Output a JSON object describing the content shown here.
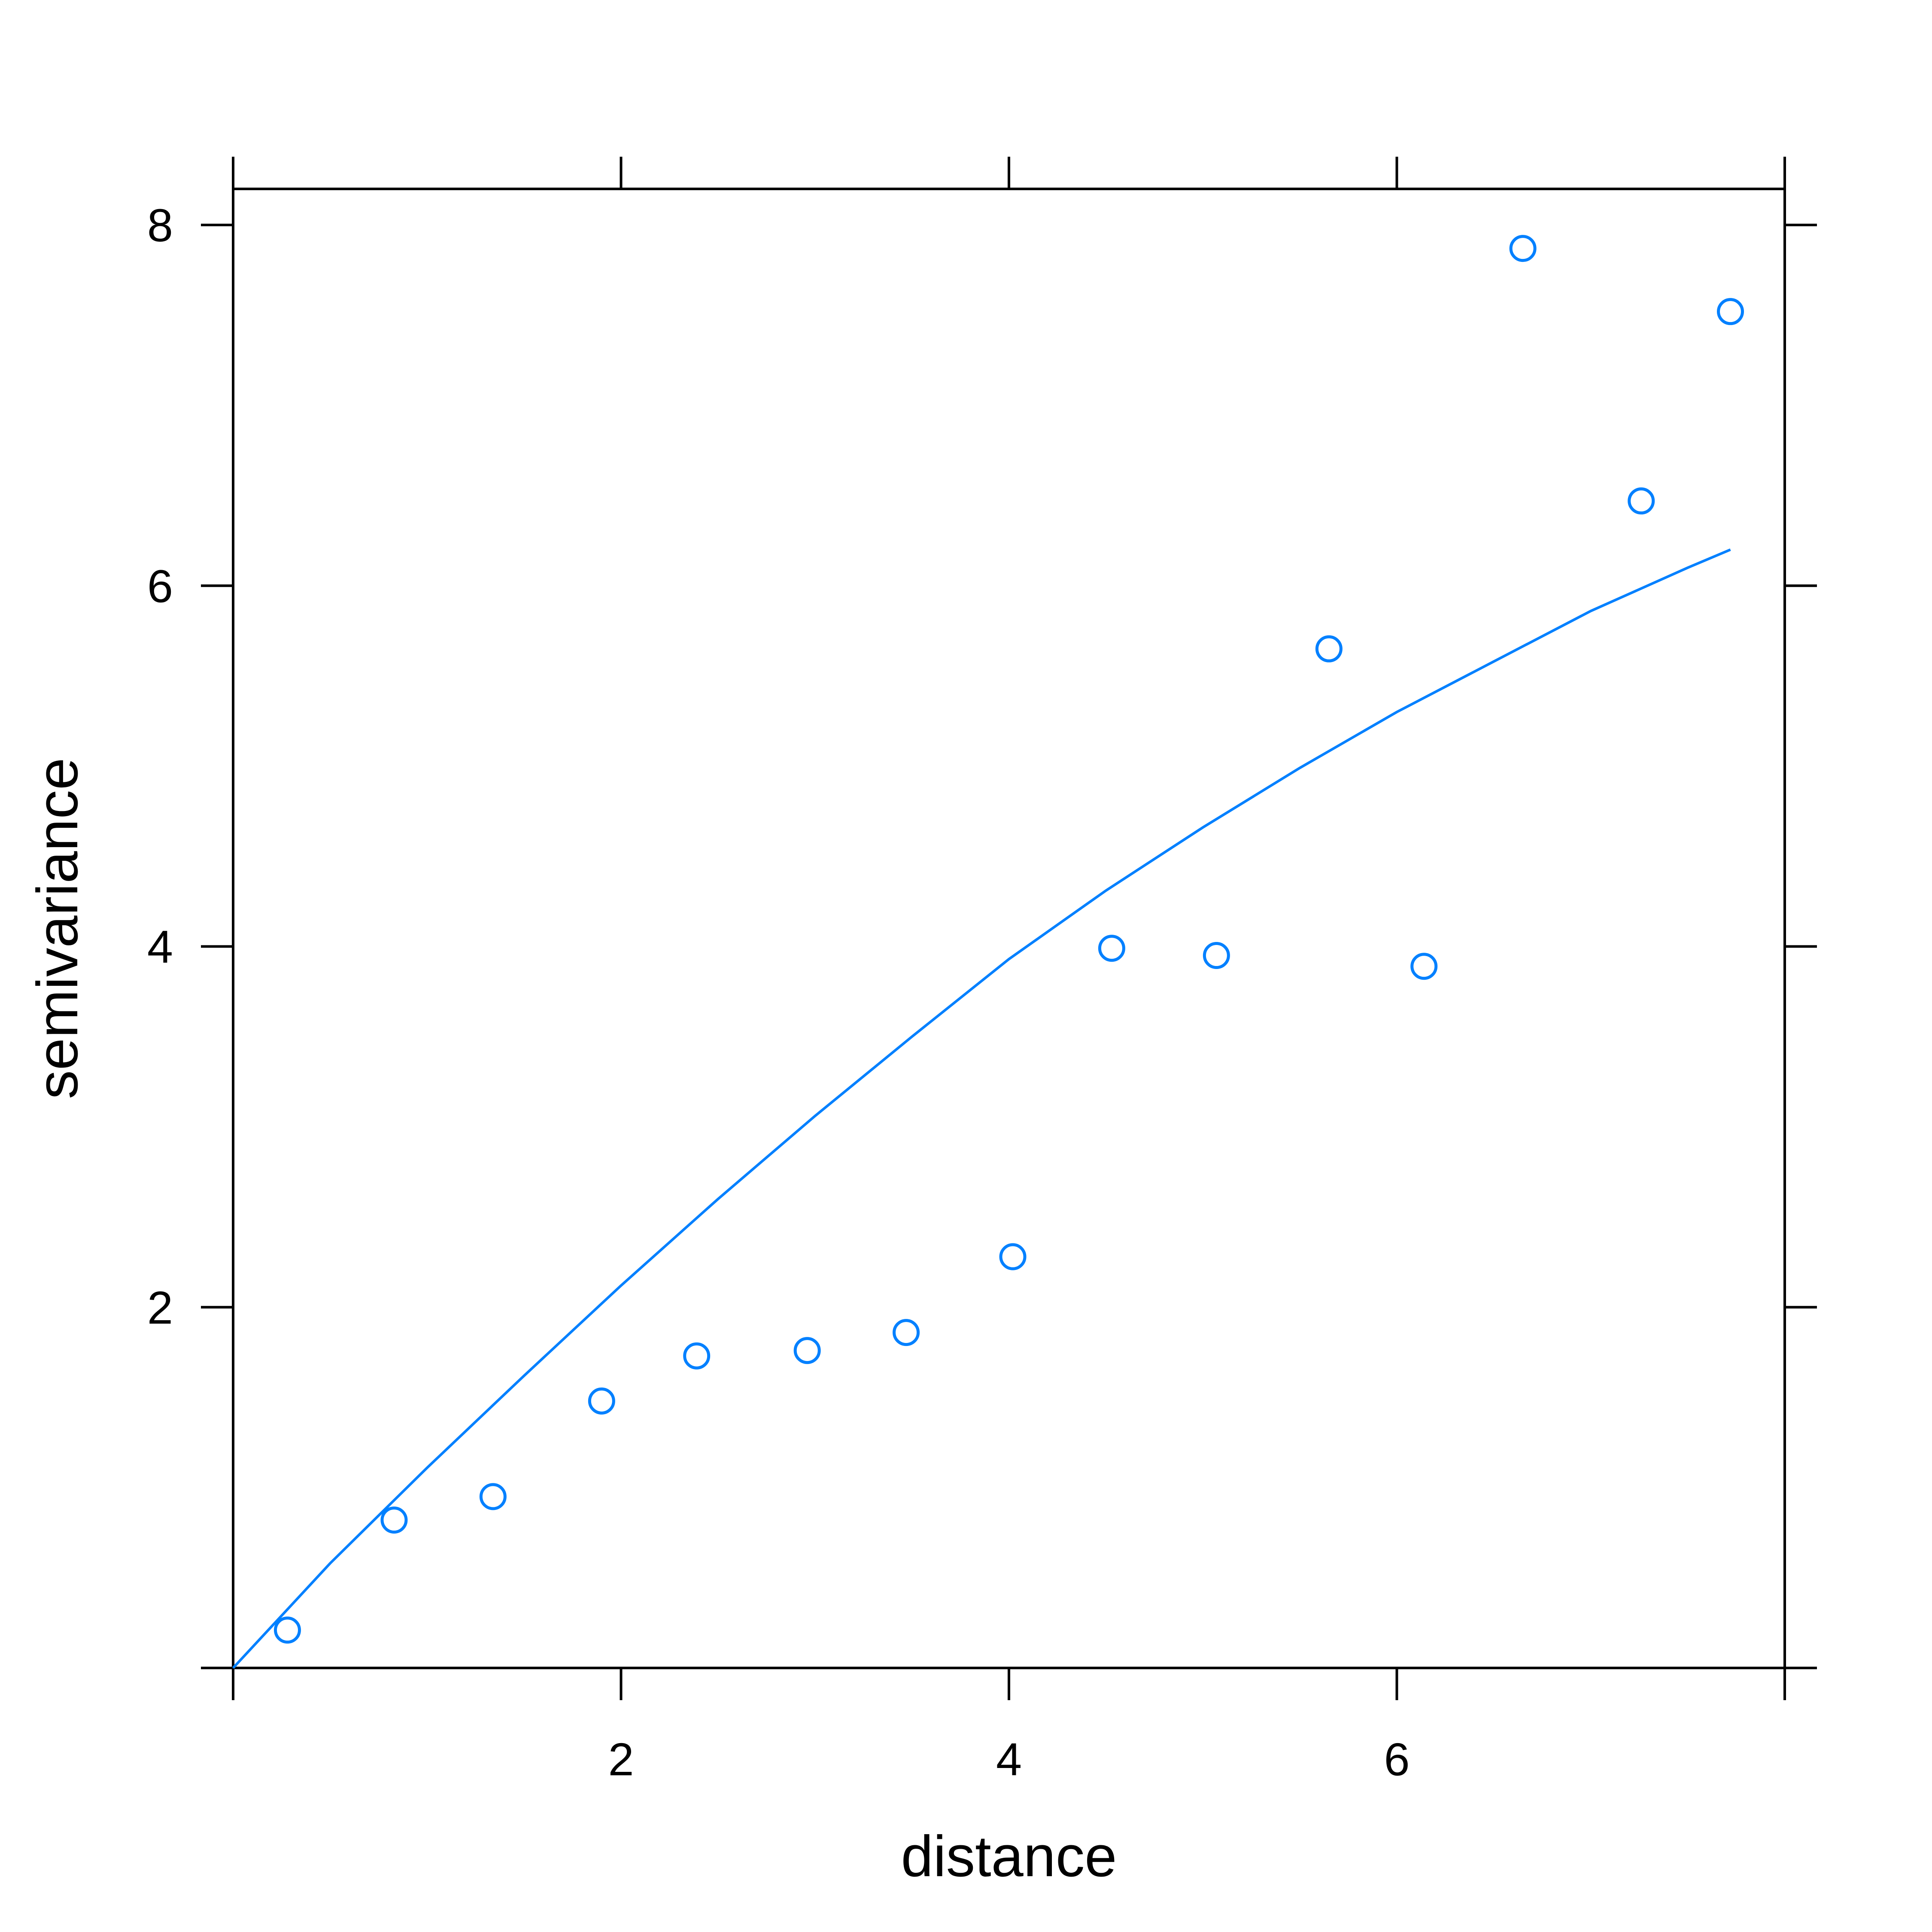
{
  "chart_data": {
    "type": "scatter",
    "xlabel": "distance",
    "ylabel": "semivariance",
    "xlim": [
      0,
      8
    ],
    "ylim": [
      0,
      8.2
    ],
    "x_ticks": [
      0,
      2,
      4,
      6,
      8
    ],
    "x_tick_labels": [
      "",
      "2",
      "4",
      "6",
      ""
    ],
    "y_ticks": [
      0,
      2,
      4,
      6,
      8
    ],
    "y_tick_labels": [
      "",
      "2",
      "4",
      "6",
      "8"
    ],
    "grid": false,
    "color": "#0080ff",
    "series": [
      {
        "kind": "points",
        "marker": "open-circle",
        "x": [
          0.28,
          0.83,
          1.34,
          1.9,
          2.39,
          2.96,
          3.47,
          4.02,
          4.53,
          5.07,
          5.65,
          6.14,
          6.65,
          7.26,
          7.72
        ],
        "y": [
          0.21,
          0.82,
          0.95,
          1.48,
          1.73,
          1.76,
          1.86,
          2.28,
          3.99,
          3.95,
          5.65,
          3.89,
          7.87,
          6.47,
          7.52
        ]
      },
      {
        "kind": "model-line",
        "x": [
          0,
          0.5,
          1,
          1.5,
          2,
          2.5,
          3,
          3.5,
          4,
          4.5,
          5,
          5.5,
          6,
          6.5,
          7,
          7.5,
          7.72
        ],
        "y": [
          0,
          0.58,
          1.11,
          1.62,
          2.12,
          2.6,
          3.06,
          3.5,
          3.93,
          4.31,
          4.66,
          4.99,
          5.3,
          5.58,
          5.86,
          6.1,
          6.2
        ]
      }
    ]
  }
}
